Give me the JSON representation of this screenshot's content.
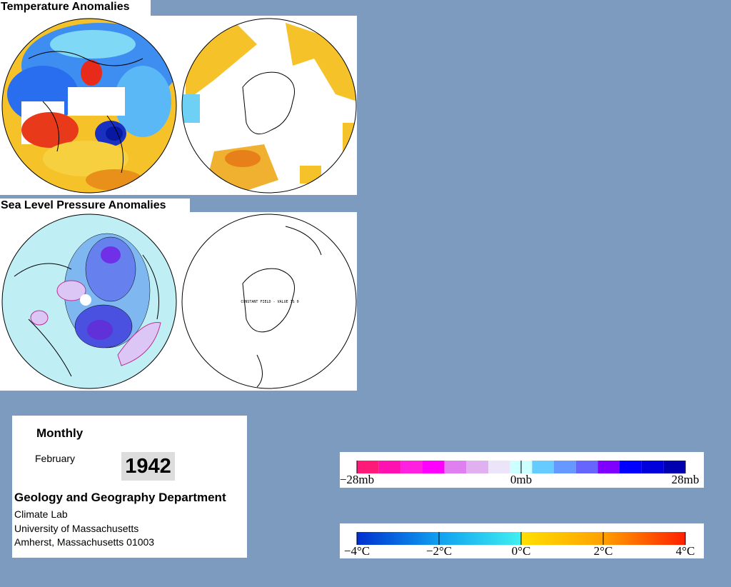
{
  "panels": [
    {
      "title": "Temperature Anomalies"
    },
    {
      "title": "Sea Level Pressure Anomalies",
      "annotation": "CONSTANT FIELD - VALUE IS 0"
    }
  ],
  "info": {
    "period": "Monthly",
    "month": "February",
    "year": "1942",
    "department": "Geology and Geography Department",
    "address": [
      "Climate Lab",
      "University of Massachusetts",
      "Amherst, Massachusetts 01003"
    ]
  },
  "legends": [
    {
      "labels": [
        "−28mb",
        "0mb",
        "28mb"
      ]
    },
    {
      "labels": [
        "−4°C",
        "−2°C",
        "0°C",
        "2°C",
        "4°C"
      ]
    }
  ]
}
